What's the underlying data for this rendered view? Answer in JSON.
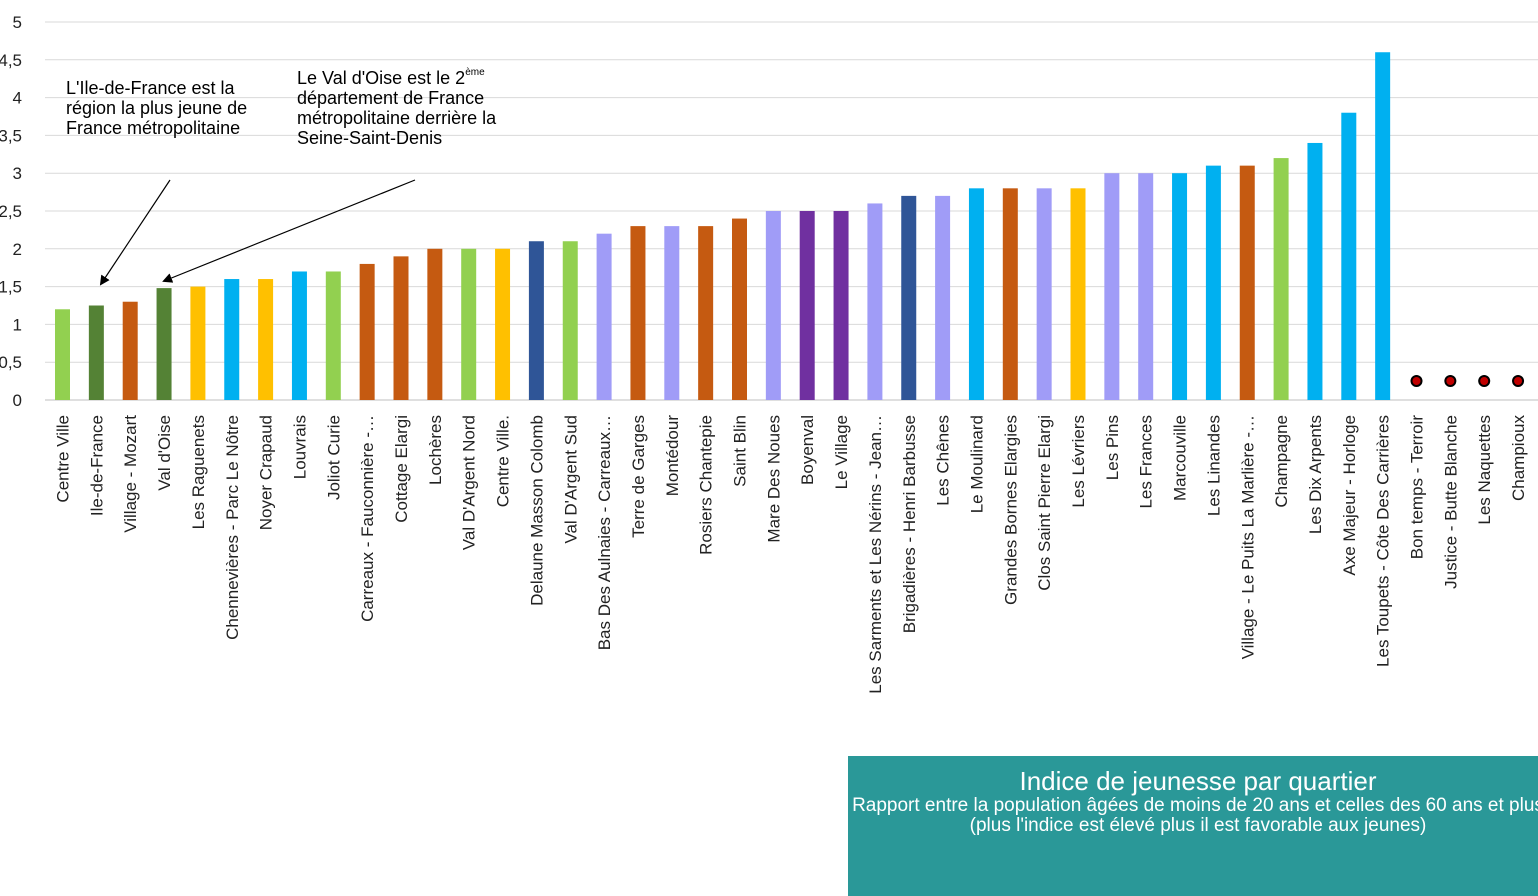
{
  "chart_data": {
    "type": "bar",
    "ylim": [
      0,
      5
    ],
    "yticks": [
      {
        "v": 0,
        "label": "0"
      },
      {
        "v": 0.5,
        "label": "0,5"
      },
      {
        "v": 1,
        "label": "1"
      },
      {
        "v": 1.5,
        "label": "1,5"
      },
      {
        "v": 2,
        "label": "2"
      },
      {
        "v": 2.5,
        "label": "2,5"
      },
      {
        "v": 3,
        "label": "3"
      },
      {
        "v": 3.5,
        "label": "3,5"
      },
      {
        "v": 4,
        "label": "4"
      },
      {
        "v": 4.5,
        "label": "4,5"
      },
      {
        "v": 5,
        "label": "5"
      }
    ],
    "grid": true,
    "categories": [
      "Centre Ville",
      "Ile-de-France",
      "Village - Mozart",
      "Val d'Oise",
      "Les Raguenets",
      "Chennevières - Parc Le Nôtre",
      "Noyer Crapaud",
      "Louvrais",
      "Joliot Curie",
      "Carreaux - Fauconnière -…",
      "Cottage Elargi",
      "Lochères",
      "Val D'Argent Nord",
      "Centre Ville.",
      "Delaune Masson Colomb",
      "Val D'Argent Sud",
      "Bas Des Aulnaies - Carreaux…",
      "Terre de Garges",
      "Montédour",
      "Rosiers Chantepie",
      "Saint Blin",
      "Mare Des Noues",
      "Boyenval",
      "Le Village",
      "Les Sarments et Les Nérins - Jean…",
      "Brigadières - Henri Barbusse",
      "Les Chênes",
      "Le Moulinard",
      "Grandes Bornes Elargies",
      "Clos Saint Pierre Elargi",
      "Les Lévriers",
      "Les Pins",
      "Les Frances",
      "Marcouville",
      "Les Linandes",
      "Village - Le Puits La Marlière -…",
      "Champagne",
      "Les Dix Arpents",
      "Axe Majeur - Horloge",
      "Les Toupets - Côte Des Carrières",
      "Bon temps - Terroir",
      "Justice - Butte Blanche",
      "Les Naquettes",
      "Champioux"
    ],
    "values": [
      1.2,
      1.25,
      1.3,
      1.48,
      1.5,
      1.6,
      1.6,
      1.7,
      1.7,
      1.8,
      1.9,
      2.0,
      2.0,
      2.0,
      2.1,
      2.1,
      2.2,
      2.3,
      2.3,
      2.3,
      2.4,
      2.5,
      2.5,
      2.5,
      2.6,
      2.7,
      2.7,
      2.8,
      2.8,
      2.8,
      2.8,
      3.0,
      3.0,
      3.0,
      3.1,
      3.1,
      3.2,
      3.4,
      3.8,
      4.6,
      null,
      null,
      null,
      null
    ],
    "colors": [
      "#92d050",
      "#548235",
      "#c55a11",
      "#548235",
      "#ffc000",
      "#00b0f0",
      "#ffc000",
      "#00b0f0",
      "#92d050",
      "#c55a11",
      "#c55a11",
      "#c55a11",
      "#92d050",
      "#ffc000",
      "#2f5597",
      "#92d050",
      "#a09cf7",
      "#c55a11",
      "#a09cf7",
      "#c55a11",
      "#c55a11",
      "#a09cf7",
      "#7030a0",
      "#7030a0",
      "#a09cf7",
      "#2f5597",
      "#a09cf7",
      "#00b0f0",
      "#c55a11",
      "#a09cf7",
      "#ffc000",
      "#a09cf7",
      "#a09cf7",
      "#00b0f0",
      "#00b0f0",
      "#c55a11",
      "#92d050",
      "#00b0f0",
      "#00b0f0",
      "#00b0f0",
      "#c00000",
      "#c00000",
      "#c00000",
      "#c00000"
    ],
    "markers": [
      {
        "category": "Bon temps - Terroir",
        "symbol": "dot"
      },
      {
        "category": "Justice - Butte Blanche",
        "symbol": "dot"
      },
      {
        "category": "Les Naquettes",
        "symbol": "dot"
      },
      {
        "category": "Champioux",
        "symbol": "dot"
      }
    ],
    "annotations": [
      {
        "text": "L'Ile-de-France est la région la plus jeune de France métropolitaine",
        "target": "Ile-de-France"
      },
      {
        "text_main": "Le Val d'Oise est le 2",
        "text_sup": "ème",
        "text_rest": "département de France métropolitaine derrière la Seine-Saint-Denis",
        "target": "Val d'Oise"
      }
    ]
  },
  "info_box": {
    "title": "Indice de jeunesse par quartier",
    "subtitle": "Rapport entre la population âgées de moins de 20 ans et celles des 60 ans et plus (plus l'indice est élevé plus il est favorable aux jeunes)",
    "background": "#2a9898"
  }
}
